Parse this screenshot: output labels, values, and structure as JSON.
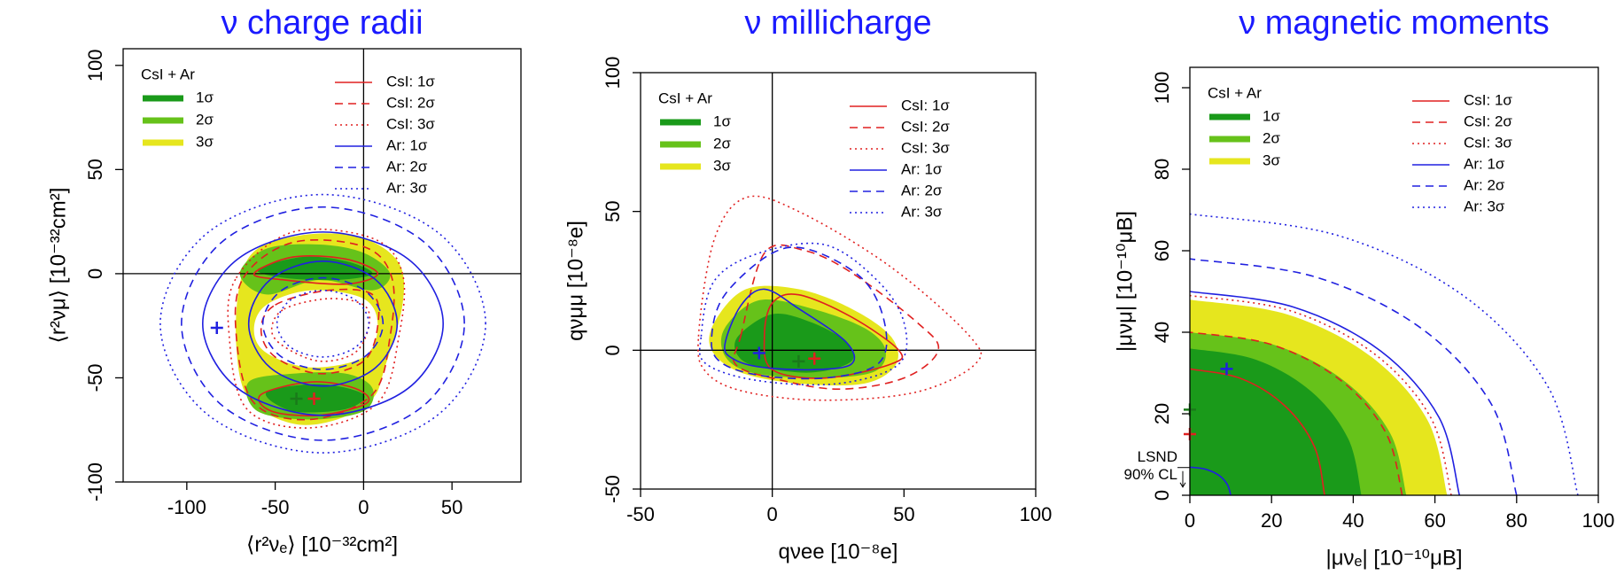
{
  "chart_data": [
    {
      "type": "contour",
      "title": "ν charge radii",
      "x_label": "⟨r²νₑ⟩  [10⁻³²cm²]",
      "y_label": "⟨r²νμ⟩  [10⁻³²cm²]",
      "xlim": [
        -136,
        89
      ],
      "ylim": [
        -100,
        108
      ],
      "xticks": [
        -100,
        -50,
        0,
        50
      ],
      "yticks": [
        -100,
        -50,
        0,
        50,
        100
      ],
      "closed_contours": true,
      "crosshair": true,
      "legend_title": "CsI + Ar",
      "fills": [
        {
          "name": "1σ",
          "color": "#1a9a1a",
          "x": [
            -60,
            -35,
            -10,
            5,
            -15,
            -45,
            null,
            -55,
            -25,
            0,
            -10,
            -40
          ],
          "y": [
            2,
            8,
            6,
            0,
            -3,
            -2,
            null,
            -57,
            -53,
            -58,
            -65,
            -66
          ]
        },
        {
          "name": "2σ",
          "color": "#66c21a",
          "x": [
            -70,
            -55,
            -25,
            0,
            15,
            5,
            -25,
            -55,
            null,
            -65,
            -40,
            -10,
            5,
            0,
            -30,
            -60
          ],
          "y": [
            0,
            12,
            14,
            10,
            0,
            -8,
            -3,
            -10,
            null,
            -52,
            -48,
            -48,
            -55,
            -66,
            -70,
            -66
          ]
        },
        {
          "name": "3σ",
          "color": "#e6e61e",
          "x": [
            -70,
            -60,
            -30,
            0,
            20,
            22,
            12,
            5,
            -15,
            -40,
            -65,
            -72,
            null,
            -55,
            -30,
            0,
            8,
            0,
            -30,
            -55,
            -62
          ],
          "y": [
            -5,
            12,
            19,
            17,
            5,
            -15,
            -45,
            -60,
            -70,
            -72,
            -60,
            -35,
            null,
            -15,
            -8,
            -12,
            -25,
            -40,
            -45,
            -38,
            -27
          ]
        }
      ],
      "series": [
        {
          "name": "CsI: 1σ",
          "color": "#e02020",
          "dash": "solid",
          "x": [
            -62,
            -40,
            -10,
            8,
            -10,
            -45,
            null,
            -58,
            -30,
            -5,
            2,
            -25,
            -52
          ],
          "y": [
            0,
            8,
            7,
            0,
            -5,
            -3,
            null,
            -58,
            -52,
            -55,
            -62,
            -68,
            -66
          ]
        },
        {
          "name": "CsI: 2σ",
          "color": "#e02020",
          "dash": "dashed",
          "x": [
            -68,
            -40,
            0,
            16,
            15,
            5,
            -30,
            -62,
            -72,
            null,
            -50,
            -20,
            5,
            8,
            0,
            -25,
            -50,
            -58
          ],
          "y": [
            -2,
            15,
            13,
            -2,
            -30,
            -58,
            -70,
            -62,
            -30,
            null,
            -15,
            -8,
            -10,
            -25,
            -42,
            -48,
            -40,
            -27
          ]
        },
        {
          "name": "CsI: 3σ",
          "color": "#e02020",
          "dash": "dotted",
          "x": [
            -72,
            -40,
            5,
            22,
            20,
            8,
            -30,
            -66,
            -76,
            null,
            -45,
            -20,
            0,
            3,
            -5,
            -25,
            -45,
            -52
          ],
          "y": [
            -2,
            20,
            17,
            0,
            -30,
            -62,
            -74,
            -65,
            -30,
            null,
            -17,
            -12,
            -15,
            -25,
            -38,
            -42,
            -35,
            -27
          ]
        },
        {
          "name": "Ar: 1σ",
          "color": "#2020e0",
          "dash": "solid",
          "x": [
            45,
            25.1,
            -23,
            -71.1,
            -91,
            -71.1,
            -23,
            25.1,
            null,
            19,
            6.7,
            -23,
            -52.7,
            -65,
            -52.7,
            -23,
            6.7
          ],
          "y": [
            -24,
            7.1,
            20,
            7.1,
            -24,
            -55.1,
            -68,
            -55.1,
            null,
            -24,
            -2.8,
            6,
            -2.8,
            -24,
            -45.2,
            -54,
            -45.2
          ]
        },
        {
          "name": "Ar: 2σ",
          "color": "#2020e0",
          "dash": "dashed",
          "x": [
            57,
            33.6,
            -23,
            -79.6,
            -103,
            -79.6,
            -23,
            33.6,
            null,
            11,
            1,
            -23,
            -47,
            -57,
            -47,
            -23,
            1
          ],
          "y": [
            -24,
            15.6,
            32,
            15.6,
            -24,
            -63.6,
            -80,
            -63.6,
            null,
            -24,
            -8.4,
            -2,
            -8.4,
            -24,
            -39.6,
            -46,
            -39.6
          ]
        },
        {
          "name": "Ar: 3σ",
          "color": "#2020e0",
          "dash": "dotted",
          "x": [
            69,
            42,
            -23,
            -88,
            -115,
            -88,
            -23,
            42,
            null,
            3,
            -4.6,
            -23,
            -41.4,
            -49,
            -41.4,
            -23,
            -4.6
          ],
          "y": [
            -24,
            19.8,
            38,
            19.8,
            -24,
            -67.8,
            -86,
            -67.8,
            null,
            -24,
            -12.7,
            -8,
            -12.7,
            -24,
            -35.3,
            -40,
            -35.3
          ]
        }
      ],
      "markers": {
        "x": [
          -83,
          -28,
          -38
        ],
        "y": [
          -26,
          -60,
          -60
        ],
        "colors": [
          "#2020e0",
          "#e02020",
          "#1a7a1a"
        ]
      }
    },
    {
      "type": "contour",
      "title": "ν millicharge",
      "x_label": "qνee  [10⁻⁸e]",
      "y_label": "qνμμ  [10⁻⁸e]",
      "xlim": [
        -50,
        100
      ],
      "ylim": [
        -50,
        100
      ],
      "xticks": [
        -50,
        0,
        50,
        100
      ],
      "yticks": [
        -50,
        0,
        50,
        100
      ],
      "closed_contours": true,
      "crosshair": true,
      "legend_title": "CsI + Ar",
      "fills": [
        {
          "name": "1σ",
          "color": "#1a9a1a",
          "x": [
            -13,
            0,
            15,
            28,
            30,
            15,
            -5,
            -13
          ],
          "y": [
            5,
            13,
            10,
            3,
            -4,
            -8,
            -6,
            -2
          ]
        },
        {
          "name": "2σ",
          "color": "#66c21a",
          "x": [
            -18,
            -5,
            15,
            35,
            43,
            38,
            15,
            -8,
            -18
          ],
          "y": [
            8,
            18,
            15,
            8,
            0,
            -8,
            -10,
            -8,
            -2
          ]
        },
        {
          "name": "3σ",
          "color": "#e6e61e",
          "x": [
            -22,
            -10,
            10,
            30,
            45,
            47,
            35,
            10,
            -12,
            -23
          ],
          "y": [
            10,
            22,
            22,
            15,
            5,
            -5,
            -12,
            -12,
            -8,
            0
          ]
        }
      ],
      "series": [
        {
          "name": "CsI: 1σ",
          "color": "#e02020",
          "dash": "solid",
          "x": [
            -3,
            0,
            10,
            30,
            48,
            45,
            20,
            0
          ],
          "y": [
            5,
            17,
            20,
            12,
            0,
            -5,
            -10,
            -7
          ]
        },
        {
          "name": "CsI: 2σ",
          "color": "#e02020",
          "dash": "dashed",
          "x": [
            -12,
            -3,
            12,
            30,
            55,
            63,
            50,
            25,
            0,
            -14
          ],
          "y": [
            5,
            35,
            36,
            28,
            10,
            0,
            -10,
            -14,
            -10,
            -5
          ]
        },
        {
          "name": "CsI: 3σ",
          "color": "#e02020",
          "dash": "dotted",
          "x": [
            -28,
            -22,
            -10,
            10,
            45,
            75,
            77,
            55,
            20,
            -10,
            -25
          ],
          "y": [
            5,
            40,
            55,
            50,
            30,
            5,
            -5,
            -15,
            -18,
            -15,
            -8
          ]
        },
        {
          "name": "Ar: 1σ",
          "color": "#2020e0",
          "dash": "solid",
          "x": [
            -18,
            -12,
            -3,
            10,
            28,
            30,
            15,
            -5,
            -15
          ],
          "y": [
            2,
            16,
            22,
            15,
            3,
            -5,
            -7,
            -6,
            -3
          ]
        },
        {
          "name": "Ar: 2σ",
          "color": "#2020e0",
          "dash": "dashed",
          "x": [
            -23,
            -18,
            0,
            15,
            35,
            43,
            40,
            20,
            -5,
            -20
          ],
          "y": [
            5,
            20,
            35,
            36,
            25,
            8,
            -5,
            -10,
            -9,
            -4
          ]
        },
        {
          "name": "Ar: 3σ",
          "color": "#2020e0",
          "dash": "dotted",
          "x": [
            -27,
            -22,
            -5,
            20,
            40,
            50,
            48,
            25,
            -5,
            -25
          ],
          "y": [
            5,
            25,
            35,
            38,
            25,
            10,
            -5,
            -12,
            -11,
            -5
          ]
        }
      ],
      "markers": {
        "x": [
          -5,
          16,
          10
        ],
        "y": [
          -1,
          -3,
          -4
        ],
        "colors": [
          "#2020e0",
          "#e02020",
          "#1a7a1a"
        ]
      }
    },
    {
      "type": "contour",
      "title": "ν magnetic moments",
      "x_label": "|μνₑ|  [10⁻¹⁰μB]",
      "y_label": "|μνμ|  [10⁻¹⁰μB]",
      "xlim": [
        0,
        100
      ],
      "ylim": [
        0,
        105
      ],
      "xticks": [
        0,
        20,
        40,
        60,
        80,
        100
      ],
      "yticks": [
        0,
        20,
        40,
        60,
        80,
        100
      ],
      "closed_contours": false,
      "crosshair": false,
      "legend_title": "CsI + Ar",
      "fills": [
        {
          "name": "1σ",
          "color": "#1a9a1a",
          "x": [
            42,
            38.8,
            29.7,
            16.1,
            0
          ],
          "y": [
            0,
            13.8,
            25.5,
            33.3,
            36
          ]
        },
        {
          "name": "2σ",
          "color": "#66c21a",
          "x": [
            53,
            49,
            37.5,
            20.3,
            0
          ],
          "y": [
            0,
            15.3,
            28.3,
            37,
            40
          ]
        },
        {
          "name": "3σ",
          "color": "#e6e61e",
          "x": [
            63,
            58.2,
            44.5,
            24.1,
            0
          ],
          "y": [
            0,
            18.4,
            33.9,
            44.3,
            48
          ]
        }
      ],
      "series": [
        {
          "name": "CsI: 1σ",
          "color": "#e02020",
          "dash": "solid",
          "x": [
            33,
            30.5,
            23.3,
            12.6,
            0
          ],
          "y": [
            0,
            11.9,
            21.9,
            28.6,
            31
          ]
        },
        {
          "name": "CsI: 2σ",
          "color": "#e02020",
          "dash": "dashed",
          "x": [
            52,
            48,
            36.8,
            19.9,
            0
          ],
          "y": [
            0,
            15.3,
            28.3,
            37,
            40
          ]
        },
        {
          "name": "CsI: 3σ",
          "color": "#e02020",
          "dash": "dotted",
          "x": [
            64,
            59.1,
            45.3,
            24.5,
            0
          ],
          "y": [
            0,
            18.8,
            34.6,
            45.3,
            49
          ]
        },
        {
          "name": "Ar: 1σ",
          "color": "#2020e0",
          "dash": "solid",
          "x": [
            66,
            61,
            46.7,
            25.3,
            0,
            null,
            10,
            9.2,
            7.1,
            3.8,
            0
          ],
          "y": [
            0,
            19.1,
            35.4,
            46.2,
            50,
            null,
            0,
            2.6,
            4.9,
            6.4,
            6.9
          ]
        },
        {
          "name": "Ar: 2σ",
          "color": "#2020e0",
          "dash": "dashed",
          "x": [
            80,
            73.9,
            56.6,
            30.6,
            0
          ],
          "y": [
            0,
            22.2,
            41,
            53.6,
            58
          ]
        },
        {
          "name": "Ar: 3σ",
          "color": "#2020e0",
          "dash": "dotted",
          "x": [
            95,
            87.8,
            67.2,
            36.4,
            0
          ],
          "y": [
            0,
            26.4,
            48.8,
            63.7,
            69
          ]
        }
      ],
      "markers": {
        "x": [
          9,
          0,
          0
        ],
        "y": [
          31,
          15,
          21
        ],
        "colors": [
          "#2020e0",
          "#e02020",
          "#1a7a1a"
        ]
      },
      "annotation": {
        "lines": [
          "LSND",
          "90% CL"
        ],
        "y": 6.8
      }
    }
  ]
}
